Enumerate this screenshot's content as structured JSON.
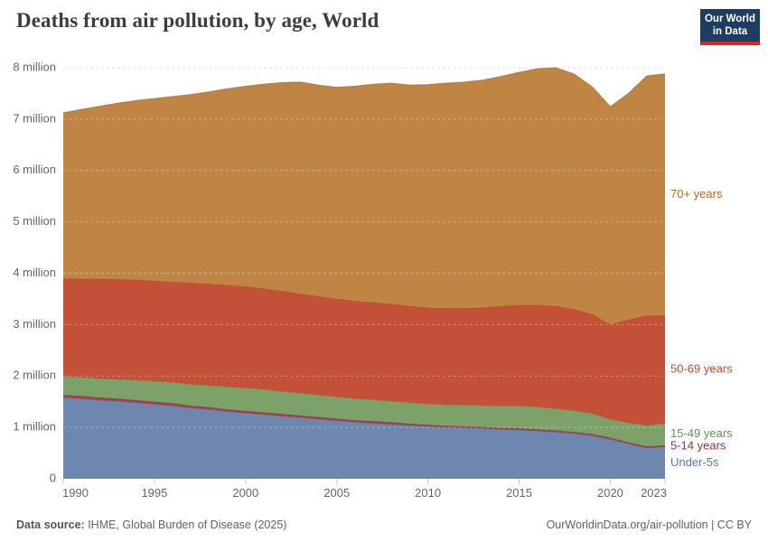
{
  "header": {
    "title": "Deaths from air pollution, by age, World",
    "logo": {
      "line1": "Our World",
      "line2": "in Data",
      "bg_color": "#1d3d63",
      "bar_color": "#d7281e"
    }
  },
  "chart_data": {
    "type": "area",
    "stacked": true,
    "title": "Deaths from air pollution, by age, World",
    "xlabel": "",
    "ylabel": "",
    "units": "millions of deaths",
    "grid": "dashed-horizontal",
    "legend_position": "right-end-labels",
    "xlim": [
      1990,
      2023
    ],
    "ylim": [
      0,
      8
    ],
    "x": [
      1990,
      1991,
      1992,
      1993,
      1994,
      1995,
      1996,
      1997,
      1998,
      1999,
      2000,
      2001,
      2002,
      2003,
      2004,
      2005,
      2006,
      2007,
      2008,
      2009,
      2010,
      2011,
      2012,
      2013,
      2014,
      2015,
      2016,
      2017,
      2018,
      2019,
      2020,
      2021,
      2022,
      2023
    ],
    "xticks": [
      1990,
      1995,
      2000,
      2005,
      2010,
      2015,
      2020,
      2023
    ],
    "yticks": [
      {
        "value": 0,
        "label": "0"
      },
      {
        "value": 1,
        "label": "1 million"
      },
      {
        "value": 2,
        "label": "2 million"
      },
      {
        "value": 3,
        "label": "3 million"
      },
      {
        "value": 4,
        "label": "4 million"
      },
      {
        "value": 5,
        "label": "5 million"
      },
      {
        "value": 6,
        "label": "6 million"
      },
      {
        "value": 7,
        "label": "7 million"
      },
      {
        "value": 8,
        "label": "8 million"
      }
    ],
    "series": [
      {
        "name": "Under-5s",
        "fill_color": "#6e87ae",
        "line_color": "#5878ab",
        "label_color": "#5878b0",
        "values": [
          1.58,
          1.56,
          1.53,
          1.51,
          1.48,
          1.45,
          1.42,
          1.38,
          1.35,
          1.31,
          1.28,
          1.25,
          1.22,
          1.19,
          1.16,
          1.13,
          1.1,
          1.08,
          1.06,
          1.04,
          1.02,
          1.0,
          0.99,
          0.98,
          0.96,
          0.95,
          0.93,
          0.91,
          0.88,
          0.84,
          0.77,
          0.68,
          0.6,
          0.62
        ]
      },
      {
        "name": "5-14 years",
        "fill_color": "#a53e55",
        "line_color": "#9e2d49",
        "label_color": "#a02c43",
        "values": [
          0.05,
          0.05,
          0.05,
          0.05,
          0.05,
          0.05,
          0.05,
          0.04,
          0.04,
          0.04,
          0.04,
          0.04,
          0.04,
          0.04,
          0.04,
          0.04,
          0.04,
          0.04,
          0.04,
          0.03,
          0.03,
          0.03,
          0.03,
          0.03,
          0.03,
          0.03,
          0.03,
          0.03,
          0.03,
          0.03,
          0.03,
          0.03,
          0.03,
          0.03
        ]
      },
      {
        "name": "15-49 years",
        "fill_color": "#7ca26a",
        "line_color": "#69964f",
        "label_color": "#65944e",
        "values": [
          0.36,
          0.37,
          0.37,
          0.38,
          0.39,
          0.4,
          0.41,
          0.42,
          0.43,
          0.44,
          0.45,
          0.45,
          0.44,
          0.44,
          0.43,
          0.43,
          0.42,
          0.42,
          0.41,
          0.41,
          0.41,
          0.41,
          0.42,
          0.42,
          0.43,
          0.44,
          0.44,
          0.43,
          0.42,
          0.4,
          0.36,
          0.38,
          0.41,
          0.43
        ]
      },
      {
        "name": "50-69 years",
        "fill_color": "#c25138",
        "line_color": "#bc4526",
        "label_color": "#c44b30",
        "values": [
          1.91,
          1.91,
          1.94,
          1.94,
          1.95,
          1.95,
          1.95,
          1.97,
          1.97,
          1.98,
          1.97,
          1.96,
          1.95,
          1.93,
          1.92,
          1.9,
          1.9,
          1.89,
          1.89,
          1.88,
          1.87,
          1.88,
          1.88,
          1.9,
          1.94,
          1.96,
          1.98,
          1.99,
          1.97,
          1.93,
          1.84,
          2.01,
          2.13,
          2.1
        ]
      },
      {
        "name": "70+ years",
        "fill_color": "#c08445",
        "line_color": "#b87a33",
        "label_color": "#b06a20",
        "values": [
          3.22,
          3.3,
          3.36,
          3.43,
          3.49,
          3.55,
          3.61,
          3.67,
          3.74,
          3.82,
          3.9,
          3.98,
          4.06,
          4.12,
          4.11,
          4.12,
          4.18,
          4.25,
          4.3,
          4.3,
          4.34,
          4.38,
          4.4,
          4.43,
          4.47,
          4.53,
          4.6,
          4.64,
          4.58,
          4.43,
          4.24,
          4.4,
          4.67,
          4.7
        ]
      }
    ],
    "axis_text_color": "#666666",
    "gridline_color": "#dddddd"
  },
  "footer": {
    "source_label": "Data source:",
    "source": " IHME, Global Burden of Disease (2025)",
    "attribution": "OurWorldinData.org/air-pollution | CC BY"
  }
}
